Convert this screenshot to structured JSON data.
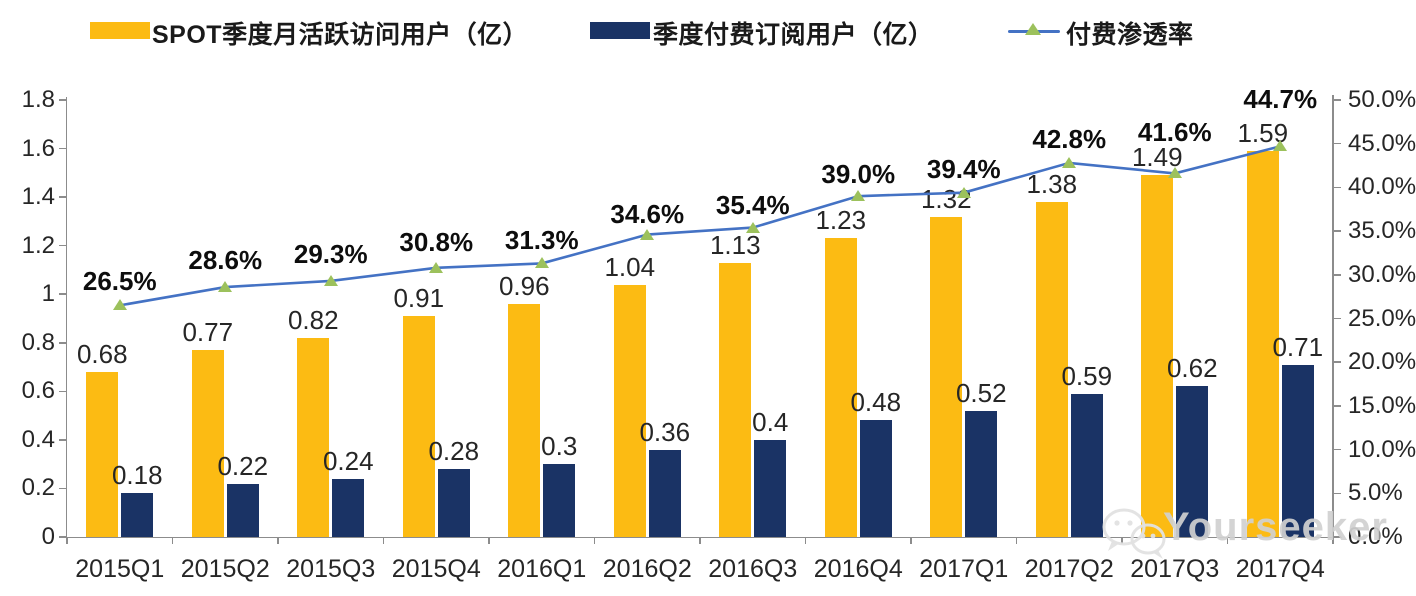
{
  "legend": [
    {
      "label": "SPOT季度月活跃访问用户（亿）",
      "color": "#FCBB13",
      "type": "bar"
    },
    {
      "label": "季度付费订阅用户（亿）",
      "color": "#1A3365",
      "type": "bar"
    },
    {
      "label": "付费渗透率",
      "color": "#4472C4",
      "marker_color": "#9CC15C",
      "type": "line"
    }
  ],
  "chart_data": {
    "type": "bar+line combo",
    "categories": [
      "2015Q1",
      "2015Q2",
      "2015Q3",
      "2015Q4",
      "2016Q1",
      "2016Q2",
      "2016Q3",
      "2016Q4",
      "2017Q1",
      "2017Q2",
      "2017Q3",
      "2017Q4"
    ],
    "series": [
      {
        "name": "SPOT季度月活跃访问用户（亿）",
        "type": "bar",
        "axis": "left",
        "color": "#FCBB13",
        "values": [
          0.68,
          0.77,
          0.82,
          0.91,
          0.96,
          1.04,
          1.13,
          1.23,
          1.32,
          1.38,
          1.49,
          1.59
        ],
        "labels": [
          "0.68",
          "0.77",
          "0.82",
          "0.91",
          "0.96",
          "1.04",
          "1.13",
          "1.23",
          "1.32",
          "1.38",
          "1.49",
          "1.59"
        ]
      },
      {
        "name": "季度付费订阅用户（亿）",
        "type": "bar",
        "axis": "left",
        "color": "#1A3365",
        "values": [
          0.18,
          0.22,
          0.24,
          0.28,
          0.3,
          0.36,
          0.4,
          0.48,
          0.52,
          0.59,
          0.62,
          0.71
        ],
        "labels": [
          "0.18",
          "0.22",
          "0.24",
          "0.28",
          "0.3",
          "0.36",
          "0.4",
          "0.48",
          "0.52",
          "0.59",
          "0.62",
          "0.71"
        ]
      },
      {
        "name": "付费渗透率",
        "type": "line",
        "axis": "right",
        "color": "#4472C4",
        "marker": "triangle",
        "marker_color": "#9CC15C",
        "values": [
          26.5,
          28.6,
          29.3,
          30.8,
          31.3,
          34.6,
          35.4,
          39.0,
          39.4,
          42.8,
          41.6,
          44.7
        ],
        "labels": [
          "26.5%",
          "28.6%",
          "29.3%",
          "30.8%",
          "31.3%",
          "34.6%",
          "35.4%",
          "39.0%",
          "39.4%",
          "42.8%",
          "41.6%",
          "44.7%"
        ]
      }
    ],
    "left_axis": {
      "min": 0,
      "max": 1.8,
      "ticks": [
        "0",
        "0.2",
        "0.4",
        "0.6",
        "0.8",
        "1",
        "1.2",
        "1.4",
        "1.6",
        "1.8"
      ]
    },
    "right_axis": {
      "min": 0,
      "max": 50,
      "ticks": [
        "0.0%",
        "5.0%",
        "10.0%",
        "15.0%",
        "20.0%",
        "25.0%",
        "30.0%",
        "35.0%",
        "40.0%",
        "45.0%",
        "50.0%"
      ]
    },
    "grid": "off",
    "legend_position": "top"
  },
  "watermark": {
    "text": "Yourseeker",
    "icon": "wechat-icon"
  }
}
